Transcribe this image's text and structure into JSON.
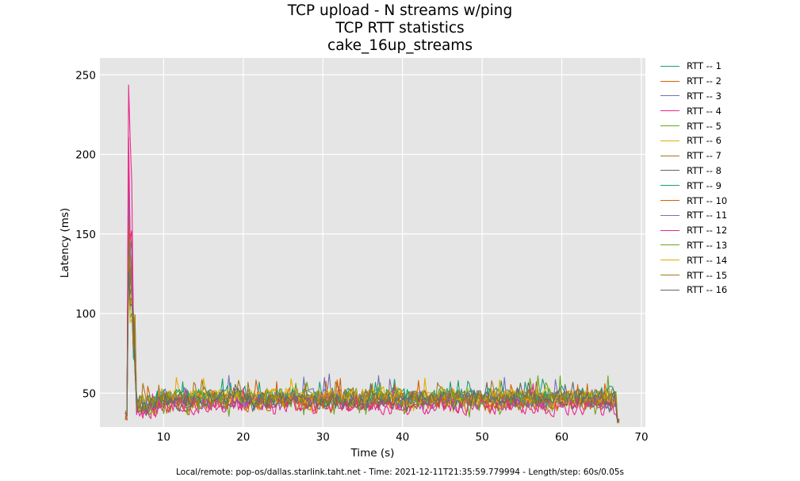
{
  "header": {
    "title_lines": [
      "TCP upload - N streams w/ping",
      "TCP RTT statistics",
      "cake_16up_streams"
    ]
  },
  "footer": {
    "text": "Local/remote: pop-os/dallas.starlink.taht.net - Time: 2021-12-11T21:35:59.779994 - Length/step: 60s/0.05s"
  },
  "chart_data": {
    "type": "line",
    "title": "TCP upload - N streams w/ping\nTCP RTT statistics\ncake_16up_streams",
    "xlabel": "Time (s)",
    "ylabel": "Latency (ms)",
    "xlim": [
      2.0,
      70.5
    ],
    "ylim": [
      28.7,
      260.6
    ],
    "xticks": [
      10,
      20,
      30,
      40,
      50,
      60,
      70
    ],
    "yticks": [
      50,
      100,
      150,
      200,
      250
    ],
    "grid": true,
    "background": "#e5e5e5",
    "legend_position": "right, outside plot",
    "x_start": 5.2,
    "x_end": 67.3,
    "step": 0.05,
    "notes": "All 16 streams spike to ~150-258 ms at t≈5.5-6.5 s, then settle to ~35-65 ms (mostly 40-55 ms) until ~67 s where they drop to ~30 ms.",
    "series": [
      {
        "name": "RTT -- 1",
        "color": "#1b9e77",
        "peak": 185,
        "steady_mean": 48,
        "steady_range": [
          37,
          63
        ]
      },
      {
        "name": "RTT -- 2",
        "color": "#d95f02",
        "peak": 200,
        "steady_mean": 45,
        "steady_range": [
          35,
          64
        ]
      },
      {
        "name": "RTT -- 3",
        "color": "#7570b3",
        "peak": 205,
        "steady_mean": 47,
        "steady_range": [
          36,
          67
        ]
      },
      {
        "name": "RTT -- 4",
        "color": "#e7298a",
        "peak": 258,
        "second_peak": 216,
        "steady_mean": 42,
        "steady_range": [
          34,
          58
        ]
      },
      {
        "name": "RTT -- 5",
        "color": "#66a61e",
        "peak": 170,
        "steady_mean": 46,
        "steady_range": [
          31,
          69
        ]
      },
      {
        "name": "RTT -- 6",
        "color": "#e6ab02",
        "peak": 165,
        "steady_mean": 47,
        "steady_range": [
          35,
          67
        ]
      },
      {
        "name": "RTT -- 7",
        "color": "#a6761d",
        "peak": 190,
        "steady_mean": 48,
        "steady_range": [
          37,
          62
        ]
      },
      {
        "name": "RTT -- 8",
        "color": "#666666",
        "peak": 175,
        "steady_mean": 45,
        "steady_range": [
          36,
          60
        ]
      },
      {
        "name": "RTT -- 9",
        "color": "#1b9e77",
        "peak": 160,
        "steady_mean": 49,
        "steady_range": [
          38,
          62
        ]
      },
      {
        "name": "RTT -- 10",
        "color": "#d95f02",
        "peak": 180,
        "steady_mean": 44,
        "steady_range": [
          36,
          63
        ]
      },
      {
        "name": "RTT -- 11",
        "color": "#7570b3",
        "peak": 195,
        "steady_mean": 46,
        "steady_range": [
          37,
          65
        ]
      },
      {
        "name": "RTT -- 12",
        "color": "#e7298a",
        "peak": 235,
        "steady_mean": 43,
        "steady_range": [
          35,
          60
        ]
      },
      {
        "name": "RTT -- 13",
        "color": "#66a61e",
        "peak": 150,
        "steady_mean": 47,
        "steady_range": [
          33,
          60
        ]
      },
      {
        "name": "RTT -- 14",
        "color": "#e6ab02",
        "peak": 140,
        "steady_mean": 48,
        "steady_range": [
          36,
          66
        ]
      },
      {
        "name": "RTT -- 15",
        "color": "#a6761d",
        "peak": 155,
        "steady_mean": 47,
        "steady_range": [
          37,
          63
        ]
      },
      {
        "name": "RTT -- 16",
        "color": "#666666",
        "peak": 145,
        "steady_mean": 46,
        "steady_range": [
          37,
          60
        ]
      }
    ]
  }
}
